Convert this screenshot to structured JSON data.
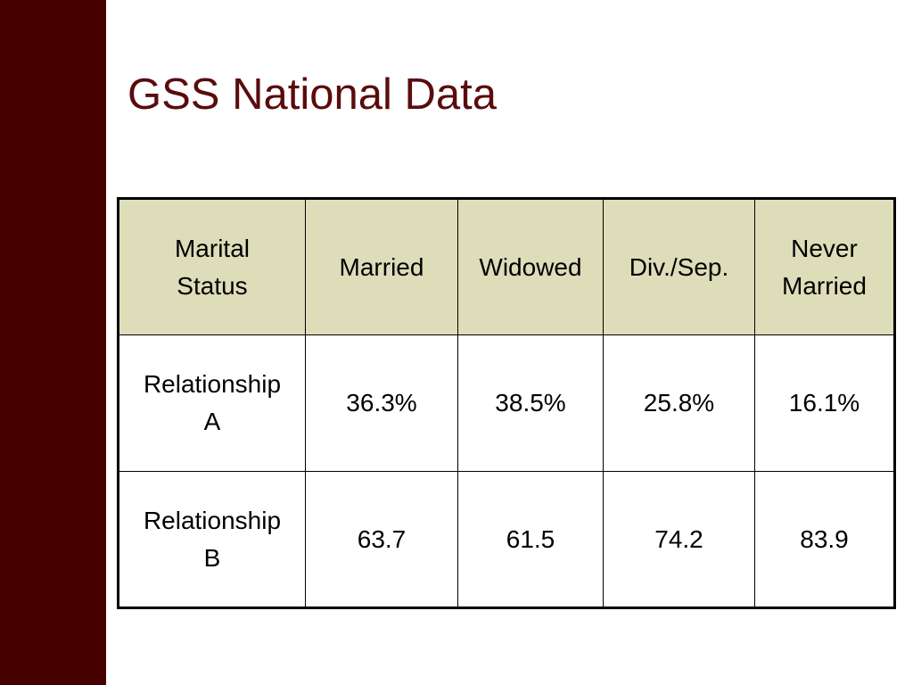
{
  "title": "GSS National Data",
  "table": {
    "header": [
      "Marital Status",
      "Married",
      "Widowed",
      "Div./Sep.",
      "Never Married"
    ],
    "rows": [
      [
        "Relationship A",
        "36.3%",
        "38.5%",
        "25.8%",
        "16.1%"
      ],
      [
        "Relationship B",
        "63.7",
        "61.5",
        "74.2",
        "83.9"
      ]
    ]
  }
}
